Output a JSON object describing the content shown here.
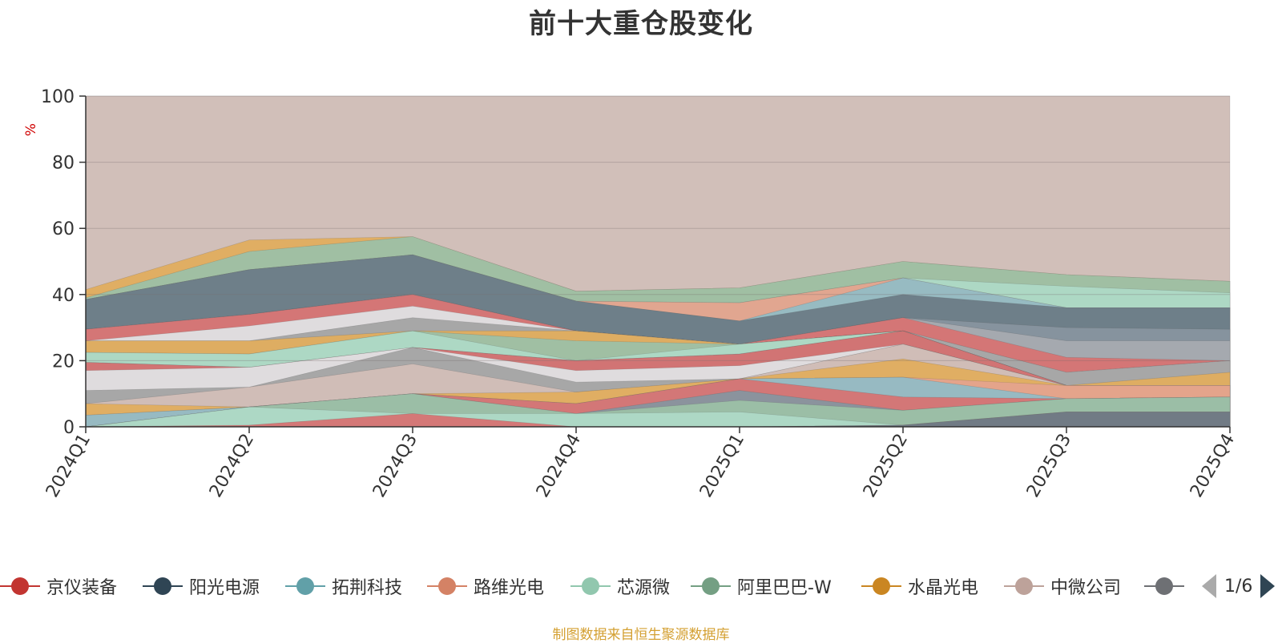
{
  "chart_data": {
    "type": "area",
    "title": "前十大重仓股变化",
    "ylabel": "%",
    "xlabel": "",
    "ylim": [
      0,
      100
    ],
    "yticks": [
      0,
      20,
      40,
      60,
      80,
      100
    ],
    "categories": [
      "2024Q1",
      "2024Q2",
      "2024Q3",
      "2024Q4",
      "2025Q1",
      "2025Q2",
      "2025Q3",
      "2025Q4"
    ],
    "layers": [
      {
        "color": "#cfbcb5",
        "values": [
          100,
          100,
          100,
          100,
          100,
          100,
          100,
          100
        ]
      },
      {
        "color": "#e0ad5e",
        "values": [
          41.5,
          56.5,
          57.5,
          41,
          42,
          50,
          46,
          44
        ]
      },
      {
        "color": "#9cc0a6",
        "values": [
          39,
          53,
          57.5,
          41,
          42,
          50,
          46,
          44
        ]
      },
      {
        "color": "#aed9c6",
        "values": [
          38.5,
          47.5,
          52,
          38,
          37.5,
          45,
          42.5,
          40.5
        ]
      },
      {
        "color": "#e4a38d",
        "values": [
          38.5,
          47.5,
          52,
          38,
          37.5,
          45,
          36,
          36
        ]
      },
      {
        "color": "#92bcc5",
        "values": [
          38.5,
          47.5,
          52,
          38,
          32,
          45,
          36,
          36
        ]
      },
      {
        "color": "#6b7b86",
        "values": [
          38.5,
          47.5,
          52,
          38,
          32,
          40,
          36,
          36
        ]
      },
      {
        "color": "#87959f",
        "values": [
          29.5,
          34,
          40,
          29,
          25,
          33,
          30,
          29.5
        ]
      },
      {
        "color": "#a6aab0",
        "values": [
          29.5,
          34,
          40,
          29,
          25,
          33,
          26,
          26
        ]
      },
      {
        "color": "#d67373",
        "values": [
          29.5,
          34,
          40,
          29,
          25,
          33,
          21,
          20
        ]
      },
      {
        "color": "#dfe1e4",
        "values": [
          26,
          30.5,
          36.5,
          29,
          25,
          29,
          16.5,
          20
        ]
      },
      {
        "color": "#a3a3a3",
        "values": [
          26,
          26,
          33,
          29,
          25,
          29,
          16.5,
          20
        ]
      },
      {
        "color": "#e0ad5e",
        "values": [
          26,
          26,
          29,
          29,
          25,
          29,
          12.5,
          16.5
        ]
      },
      {
        "color": "#9cc0a6",
        "values": [
          22.5,
          22,
          29,
          26,
          25,
          29,
          12.5,
          12.5
        ]
      },
      {
        "color": "#aed9c6",
        "values": [
          22.5,
          22,
          29,
          20,
          25,
          29,
          12.5,
          12.5
        ]
      },
      {
        "color": "#6b7b86",
        "values": [
          19.5,
          18,
          24,
          20,
          22,
          29,
          12.5,
          12.5
        ]
      },
      {
        "color": "#d67373",
        "values": [
          19.5,
          18,
          24,
          20,
          22,
          29,
          12.5,
          12.5
        ]
      },
      {
        "color": "#dfe1e4",
        "values": [
          17,
          18,
          24,
          17,
          18.5,
          25,
          12.5,
          12.5
        ]
      },
      {
        "color": "#a3a3a3",
        "values": [
          11,
          12,
          24,
          13.5,
          14.5,
          25,
          12.5,
          12.5
        ]
      },
      {
        "color": "#d2beb7",
        "values": [
          7,
          12,
          19,
          10.5,
          14.5,
          25,
          12.5,
          12.5
        ]
      },
      {
        "color": "#e0ad5e",
        "values": [
          7,
          6,
          10,
          10.5,
          14.5,
          20.5,
          12.5,
          12.5
        ]
      },
      {
        "color": "#e4a38d",
        "values": [
          3.5,
          6,
          10,
          7,
          14.5,
          15,
          12.5,
          12.5
        ]
      },
      {
        "color": "#92bcc5",
        "values": [
          3.5,
          6,
          10,
          7,
          14.5,
          15,
          8.5,
          9
        ]
      },
      {
        "color": "#d67373",
        "values": [
          0,
          6,
          10,
          7,
          14.5,
          9,
          8.5,
          9
        ]
      },
      {
        "color": "#87959f",
        "values": [
          0,
          6,
          10,
          4,
          11,
          5,
          8.5,
          9
        ]
      },
      {
        "color": "#9cc0a6",
        "values": [
          0,
          6,
          10,
          4,
          8,
          5,
          8.5,
          9
        ]
      },
      {
        "color": "#aed9c6",
        "values": [
          0,
          6,
          4,
          4,
          4.5,
          0.5,
          4.5,
          4.5
        ]
      },
      {
        "color": "#d67373",
        "values": [
          0,
          0.5,
          4,
          0,
          0,
          0.5,
          4.5,
          4.5
        ]
      },
      {
        "color": "#6b7b86",
        "values": [
          0,
          0,
          0,
          0,
          0,
          0.5,
          4.5,
          4.5
        ]
      }
    ],
    "legend": [
      {
        "name": "京仪装备",
        "color": "#c23531"
      },
      {
        "name": "阳光电源",
        "color": "#2f4554"
      },
      {
        "name": "拓荆科技",
        "color": "#61a0a8"
      },
      {
        "name": "路维光电",
        "color": "#d48265"
      },
      {
        "name": "芯源微",
        "color": "#91c7ae"
      },
      {
        "name": "阿里巴巴-W",
        "color": "#749f83"
      },
      {
        "name": "水晶光电",
        "color": "#ca8622"
      },
      {
        "name": "中微公司",
        "color": "#bda29a"
      },
      {
        "name": "",
        "color": "#6e7074"
      }
    ],
    "legend_page": "1/6"
  },
  "source_note": "制图数据来自恒生聚源数据库"
}
